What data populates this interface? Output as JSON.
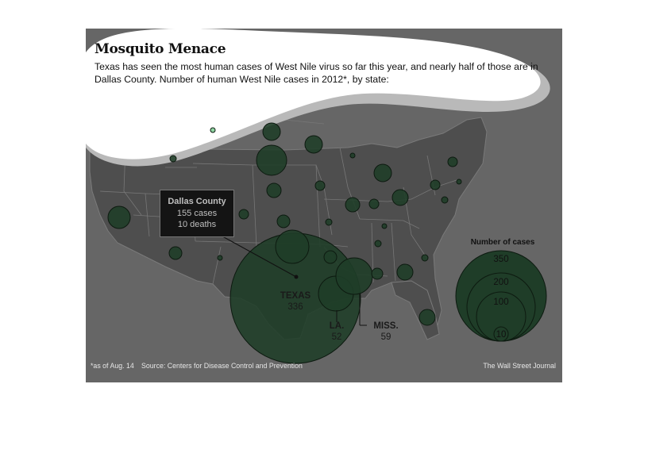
{
  "title": "Mosquito Menace",
  "subtitle": "Texas has seen the most human cases of West Nile virus so far this year, and nearly half of those are in Dallas County. Number of human West Nile cases in 2012*, by state:",
  "callout": {
    "name": "Dallas County",
    "cases": "155 cases",
    "deaths": "10 deaths"
  },
  "labels": {
    "texas": {
      "name": "TEXAS",
      "value": "336"
    },
    "louisiana": {
      "name": "LA.",
      "value": "52"
    },
    "mississippi": {
      "name": "MISS.",
      "value": "59"
    }
  },
  "legend": {
    "title": "Number of cases",
    "values": [
      350,
      200,
      100,
      10
    ],
    "labels": [
      "350",
      "200",
      "100",
      "10"
    ]
  },
  "footnote": "*as of Aug. 14",
  "source": "Source: Centers for Disease Control and Prevention",
  "credit": "The Wall Street Journal",
  "colors": {
    "background": "#666666",
    "land": "#4e4e4e",
    "borders": "#777777",
    "bubble_fill": "#1f3d28",
    "bubble_stroke": "#0d1a10",
    "callout_bg": "#141414",
    "highlight": "#ffffff"
  },
  "bubble_values": {
    "Texas": 336,
    "Louisiana": 52,
    "Mississippi": 59
  }
}
